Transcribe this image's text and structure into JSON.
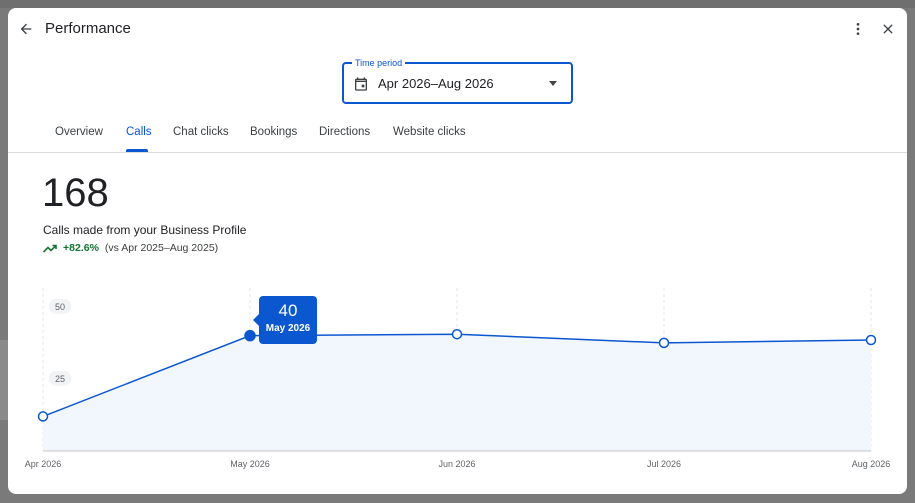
{
  "header": {
    "title": "Performance"
  },
  "time_period": {
    "label": "Time period",
    "value": "Apr 2026–Aug 2026"
  },
  "tabs": [
    {
      "label": "Overview",
      "active": false
    },
    {
      "label": "Calls",
      "active": true
    },
    {
      "label": "Chat clicks",
      "active": false
    },
    {
      "label": "Bookings",
      "active": false
    },
    {
      "label": "Directions",
      "active": false
    },
    {
      "label": "Website clicks",
      "active": false
    }
  ],
  "metric": {
    "total": "168",
    "description": "Calls made from your Business Profile",
    "change": "+82.6%",
    "comparison": "(vs Apr 2025–Aug 2025)"
  },
  "tooltip": {
    "value": "40",
    "label": "May 2026"
  },
  "colors": {
    "accent": "#0b57d0",
    "positive": "#137333",
    "area_fill": "#f2f6fd"
  },
  "chart_data": {
    "type": "area",
    "x": [
      "Apr 2026",
      "May 2026",
      "Jun 2026",
      "Jul 2026",
      "Aug 2026"
    ],
    "y_ticks": [
      "50",
      "25"
    ],
    "values": [
      12,
      40,
      40.5,
      37.5,
      38.5
    ],
    "ylim": [
      0,
      60
    ],
    "grid": "vertical dashed",
    "highlighted_index": 1
  }
}
